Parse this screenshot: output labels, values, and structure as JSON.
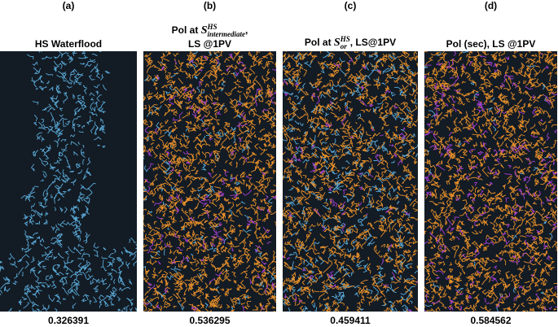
{
  "panels": [
    {
      "label": "(a)",
      "title": "HS Waterflood",
      "value": 0.326391
    },
    {
      "label": "(b)",
      "title_prefix": "Pol at ",
      "symbol": "S",
      "sup": "HS",
      "sub": "intermediate",
      "title_suffix": ",",
      "title_line2": "LS @1PV",
      "value": 0.536295
    },
    {
      "label": "(c)",
      "title_prefix": "Pol at ",
      "symbol": "S",
      "sup": "HS",
      "sub": "or",
      "title_suffix": ", LS@1PV",
      "value": 0.459411
    },
    {
      "label": "(d)",
      "title": "Pol (sec), LS @1PV",
      "value": 0.584562
    }
  ]
}
